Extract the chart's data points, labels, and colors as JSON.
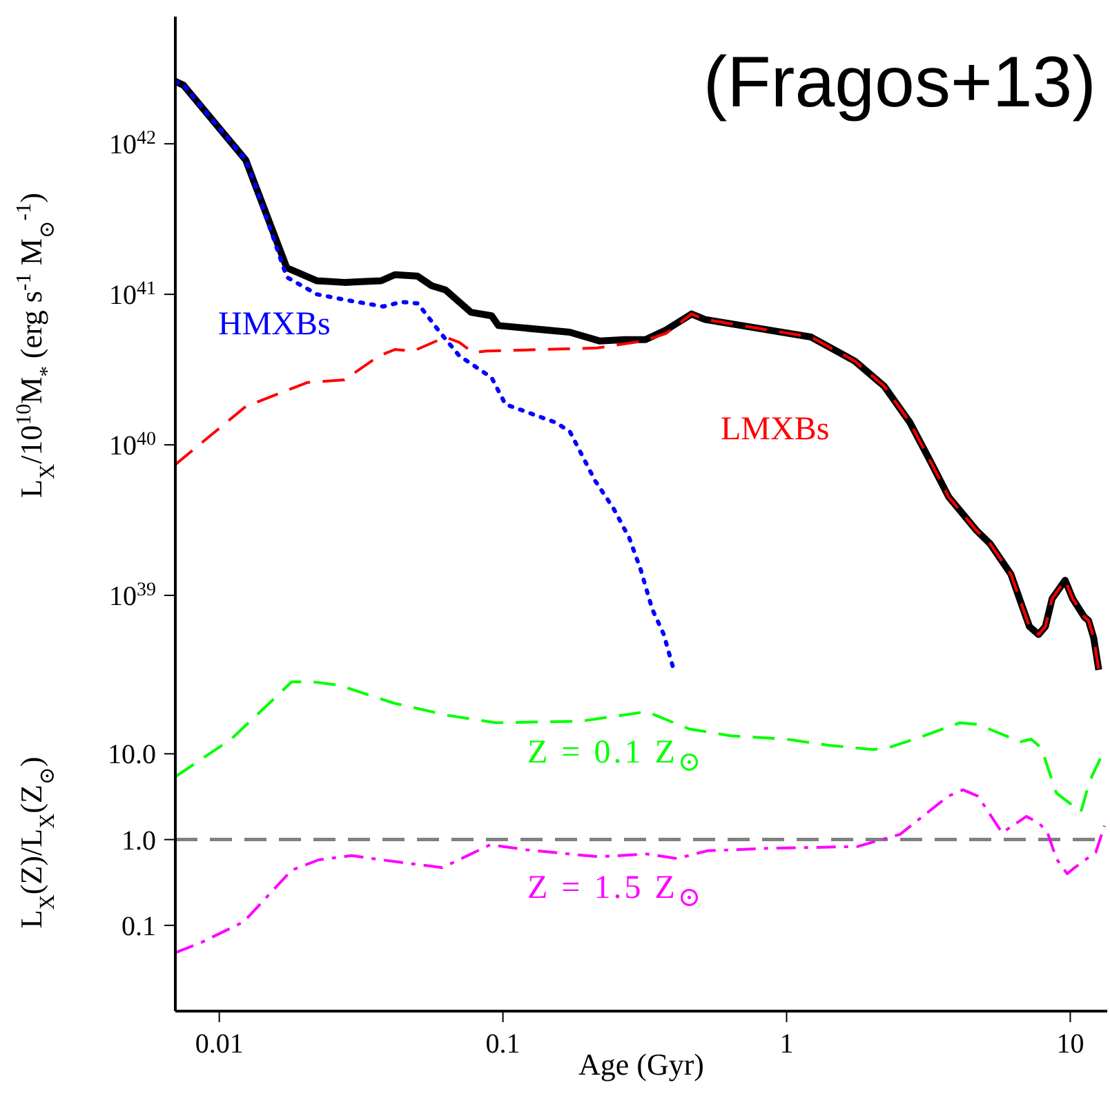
{
  "chart_data": [
    {
      "type": "line",
      "log": "xy",
      "tick_labels": "y",
      "ylabel": "L$_{X}$/10$^{10}$M$_{*}$ (erg s$^{-1}$ M$_{⊙}$$^{-1}$)",
      "annotations": [
        "(Fragos+13)"
      ],
      "xlim": [
        0.007,
        13.5
      ],
      "xticks": [
        0.01,
        0.1,
        1,
        10
      ],
      "ylim": [
        3e+38,
        7e+42
      ],
      "yticks": [
        {
          "value": 1e+39,
          "label": "10$^{39}$"
        },
        {
          "value": 1e+40,
          "label": "10$^{40}$"
        },
        {
          "value": 1e+41,
          "label": "10$^{41}$"
        },
        {
          "value": 1e+42,
          "label": "10$^{42}$"
        }
      ],
      "series": [
        {
          "color": "#000000",
          "line_style": "solid",
          "x": [
            0.007,
            0.00748,
            0.0124,
            0.0133,
            0.0173,
            0.0221,
            0.0276,
            0.0372,
            0.0416,
            0.05,
            0.0561,
            0.0627,
            0.0771,
            0.0912,
            0.0964,
            0.172,
            0.219,
            0.269,
            0.318,
            0.376,
            0.462,
            0.516,
            1.22,
            1.74,
            2.21,
            2.72,
            3.21,
            3.73,
            4.67,
            5.22,
            6.18,
            6.65,
            7.18,
            7.73,
            8.17,
            8.63,
            9.59,
            10.2,
            11.2,
            11.6,
            12.1,
            12.6
          ],
          "values": [
            2.6e+42,
            2.45e+42,
            7.8e+41,
            5.5e+41,
            1.5e+41,
            1.23e+41,
            1.2e+41,
            1.23e+41,
            1.35e+41,
            1.32e+41,
            1.14e+41,
            1.07e+41,
            7.6e+40,
            7.2e+40,
            6.2e+40,
            5.6e+40,
            4.9e+40,
            5e+40,
            5e+40,
            5.8e+40,
            7.4e+40,
            6.8e+40,
            5.2e+40,
            3.6e+40,
            2.45e+40,
            1.41e+40,
            7.8e+39,
            4.5e+39,
            2.7e+39,
            2.2e+39,
            1.38e+39,
            9.3e+38,
            6.2e+38,
            5.5e+38,
            6.2e+38,
            9.5e+38,
            1.26e+39,
            9.5e+38,
            7.2e+38,
            6.8e+38,
            5.2e+38,
            3.2e+38
          ]
        },
        {
          "name": "LMXBs",
          "color": "#ff0000",
          "line_style": "dashed",
          "x": [
            0.007,
            0.0124,
            0.0205,
            0.0276,
            0.0366,
            0.0416,
            0.0483,
            0.0627,
            0.0701,
            0.0785,
            0.0877,
            0.215,
            0.312,
            0.376,
            0.462,
            0.516,
            1.22,
            1.74,
            2.21,
            2.72,
            3.21,
            3.73,
            4.67,
            5.22,
            6.18,
            6.65,
            7.18,
            7.73,
            8.17,
            8.63,
            9.59,
            10.2,
            11.2,
            11.6,
            12.1,
            12.6
          ],
          "values": [
            7.4e+39,
            1.8e+40,
            2.6e+40,
            2.7e+40,
            3.9e+40,
            4.3e+40,
            4.2e+40,
            5.2e+40,
            4.8e+40,
            4.1e+40,
            4.2e+40,
            4.4e+40,
            4.9e+40,
            5.5e+40,
            7.4e+40,
            6.8e+40,
            5.2e+40,
            3.6e+40,
            2.45e+40,
            1.41e+40,
            7.8e+39,
            4.5e+39,
            2.7e+39,
            2.2e+39,
            1.38e+39,
            9.3e+38,
            6.2e+38,
            5.5e+38,
            6.2e+38,
            9.5e+38,
            1.26e+39,
            9.5e+38,
            7.2e+38,
            6.8e+38,
            5.2e+38,
            3.2e+38
          ]
        },
        {
          "name": "HMXBs",
          "color": "#0000ff",
          "line_style": "dotted",
          "x": [
            0.007,
            0.00748,
            0.0124,
            0.0133,
            0.0173,
            0.0221,
            0.0286,
            0.0379,
            0.044,
            0.0501,
            0.0604,
            0.0702,
            0.0912,
            0.102,
            0.153,
            0.172,
            0.211,
            0.245,
            0.279,
            0.306,
            0.336,
            0.369,
            0.4
          ],
          "values": [
            2.6e+42,
            2.45e+42,
            7.8e+41,
            5.5e+41,
            1.3e+41,
            1e+41,
            9.1e+40,
            8.3e+40,
            8.9e+40,
            8.7e+40,
            5.5e+40,
            3.9e+40,
            2.8e+40,
            1.86e+40,
            1.41e+40,
            1.23e+40,
            5.8e+39,
            3.8e+39,
            2.4e+39,
            1.48e+39,
            8.1e+38,
            5.5e+38,
            3.2e+38
          ]
        }
      ]
    },
    {
      "type": "line",
      "log": "xy",
      "xlabel": "Age (Gyr)",
      "ylabel": "L$_{X}$(Z)/L$_{X}$(Z$_{⊙}$)",
      "xlim": [
        0.007,
        13.5
      ],
      "xticks": [
        0.01,
        0.1,
        1,
        10
      ],
      "ylim": [
        0.01,
        85
      ],
      "yticks": [
        0.1,
        {
          "value": 1,
          "label": "1.0"
        },
        {
          "value": 10,
          "label": "10.0"
        }
      ],
      "ref_lines": [
        {
          "axis": "y",
          "value": 1,
          "color": "#808080",
          "line_style": "dashed"
        }
      ],
      "series": [
        {
          "name": "Z = 0.1 Z$_{⊙}$",
          "color": "#00ff00",
          "line_style": "dashed",
          "x": [
            0.007,
            0.011,
            0.0155,
            0.018,
            0.0214,
            0.0265,
            0.0412,
            0.0641,
            0.0948,
            0.188,
            0.321,
            0.453,
            0.638,
            1.0,
            1.4,
            2.01,
            2.27,
            3.05,
            4.08,
            4.73,
            6.67,
            7.28,
            7.91,
            8.51,
            8.93,
            10.9,
            11.7,
            12.9
          ],
          "values": [
            5.4,
            14.8,
            43,
            69,
            69,
            63,
            39,
            28,
            23,
            24,
            31,
            19.5,
            16.2,
            14.8,
            12.6,
            11.2,
            11.7,
            16.2,
            23,
            22,
            13.8,
            14.8,
            11.7,
            5.6,
            3.5,
            2.1,
            4.8,
            9.5
          ]
        },
        {
          "name": "Z = 1.5 Z$_{⊙}$",
          "color": "#ff00ff",
          "line_style": "dashdot",
          "x": [
            0.007,
            0.00863,
            0.0122,
            0.018,
            0.0224,
            0.0293,
            0.0374,
            0.0611,
            0.0902,
            0.121,
            0.217,
            0.321,
            0.411,
            0.525,
            0.855,
            1.78,
            2.51,
            3.71,
            4.19,
            4.73,
            5.75,
            7.0,
            7.71,
            8.3,
            8.93,
            9.75,
            10.35,
            12.3,
            13.2
          ],
          "values": [
            0.048,
            0.063,
            0.11,
            0.44,
            0.58,
            0.65,
            0.58,
            0.47,
            0.87,
            0.76,
            0.63,
            0.68,
            0.6,
            0.74,
            0.79,
            0.83,
            1.15,
            3.2,
            3.8,
            3.2,
            1.2,
            1.86,
            1.58,
            1.23,
            0.6,
            0.4,
            0.47,
            0.71,
            1.45
          ]
        }
      ]
    }
  ]
}
